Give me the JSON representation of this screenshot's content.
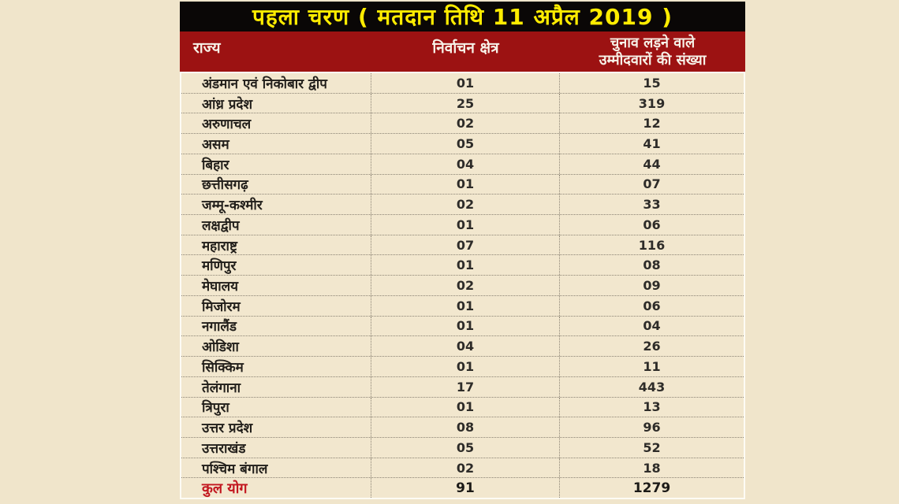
{
  "page": {
    "background": "#f0e5cb"
  },
  "title_bar": {
    "text": "पहला चरण ( मतदान तिथि 11 अप्रैल 2019 )",
    "bg": "#0a0706",
    "text_color": "#ffec00"
  },
  "table": {
    "header": {
      "col1": "राज्य",
      "col2": "निर्वाचन क्षेत्र",
      "col3_line1": "चुनाव लड़ने वाले",
      "col3_line2": "उम्मीदवारों की संख्या",
      "bg": "#9c1212",
      "text_color": "#f7f2e8"
    },
    "rows": [
      {
        "state": "अंडमान एवं निकोबार द्वीप",
        "constituencies": "01",
        "candidates": "15"
      },
      {
        "state": "आंध्र प्रदेश",
        "constituencies": "25",
        "candidates": "319"
      },
      {
        "state": "अरुणाचल",
        "constituencies": "02",
        "candidates": "12"
      },
      {
        "state": "असम",
        "constituencies": "05",
        "candidates": "41"
      },
      {
        "state": "बिहार",
        "constituencies": "04",
        "candidates": "44"
      },
      {
        "state": "छत्तीसगढ़",
        "constituencies": "01",
        "candidates": "07"
      },
      {
        "state": "जम्मू-कश्मीर",
        "constituencies": "02",
        "candidates": "33"
      },
      {
        "state": "लक्षद्वीप",
        "constituencies": "01",
        "candidates": "06"
      },
      {
        "state": "महाराष्ट्र",
        "constituencies": "07",
        "candidates": "116"
      },
      {
        "state": "मणिपुर",
        "constituencies": "01",
        "candidates": "08"
      },
      {
        "state": "मेघालय",
        "constituencies": "02",
        "candidates": "09"
      },
      {
        "state": "मिजोरम",
        "constituencies": "01",
        "candidates": "06"
      },
      {
        "state": "नगालैंड",
        "constituencies": "01",
        "candidates": "04"
      },
      {
        "state": "ओडिशा",
        "constituencies": "04",
        "candidates": "26"
      },
      {
        "state": "सिक्किम",
        "constituencies": "01",
        "candidates": "11"
      },
      {
        "state": "तेलंगाना",
        "constituencies": "17",
        "candidates": "443"
      },
      {
        "state": "त्रिपुरा",
        "constituencies": "01",
        "candidates": "13"
      },
      {
        "state": "उत्तर प्रदेश",
        "constituencies": "08",
        "candidates": "96"
      },
      {
        "state": "उत्तराखंड",
        "constituencies": "05",
        "candidates": "52"
      },
      {
        "state": "पश्चिम बंगाल",
        "constituencies": "02",
        "candidates": "18"
      }
    ],
    "total": {
      "label": "कुल योग",
      "constituencies": "91",
      "candidates": "1279",
      "label_color": "#c2161f"
    }
  },
  "chart_data": {
    "type": "table",
    "title": "पहला चरण ( मतदान तिथि 11 अप्रैल 2019 )",
    "columns": [
      "राज्य",
      "निर्वाचन क्षेत्र",
      "चुनाव लड़ने वाले उम्मीदवारों की संख्या"
    ],
    "rows": [
      [
        "अंडमान एवं निकोबार द्वीप",
        1,
        15
      ],
      [
        "आंध्र प्रदेश",
        25,
        319
      ],
      [
        "अरुणाचल",
        2,
        12
      ],
      [
        "असम",
        5,
        41
      ],
      [
        "बिहार",
        4,
        44
      ],
      [
        "छत्तीसगढ़",
        1,
        7
      ],
      [
        "जम्मू-कश्मीर",
        2,
        33
      ],
      [
        "लक्षद्वीप",
        1,
        6
      ],
      [
        "महाराष्ट्र",
        7,
        116
      ],
      [
        "मणिपुर",
        1,
        8
      ],
      [
        "मेघालय",
        2,
        9
      ],
      [
        "मिजोरम",
        1,
        6
      ],
      [
        "नगालैंड",
        1,
        4
      ],
      [
        "ओडिशा",
        4,
        26
      ],
      [
        "सिक्किम",
        1,
        11
      ],
      [
        "तेलंगाना",
        17,
        443
      ],
      [
        "त्रिपुरा",
        1,
        13
      ],
      [
        "उत्तर प्रदेश",
        8,
        96
      ],
      [
        "उत्तराखंड",
        5,
        52
      ],
      [
        "पश्चिम बंगाल",
        2,
        18
      ]
    ],
    "total_row": [
      "कुल योग",
      91,
      1279
    ],
    "colors": {
      "page_background": "#f0e5cb",
      "title_bg": "#0a0706",
      "title_text": "#ffec00",
      "header_bg": "#9c1212",
      "header_text": "#f7f2e8",
      "body_text": "#211e1a",
      "total_label": "#c2161f",
      "divider_dotted": "#8b8374"
    }
  }
}
